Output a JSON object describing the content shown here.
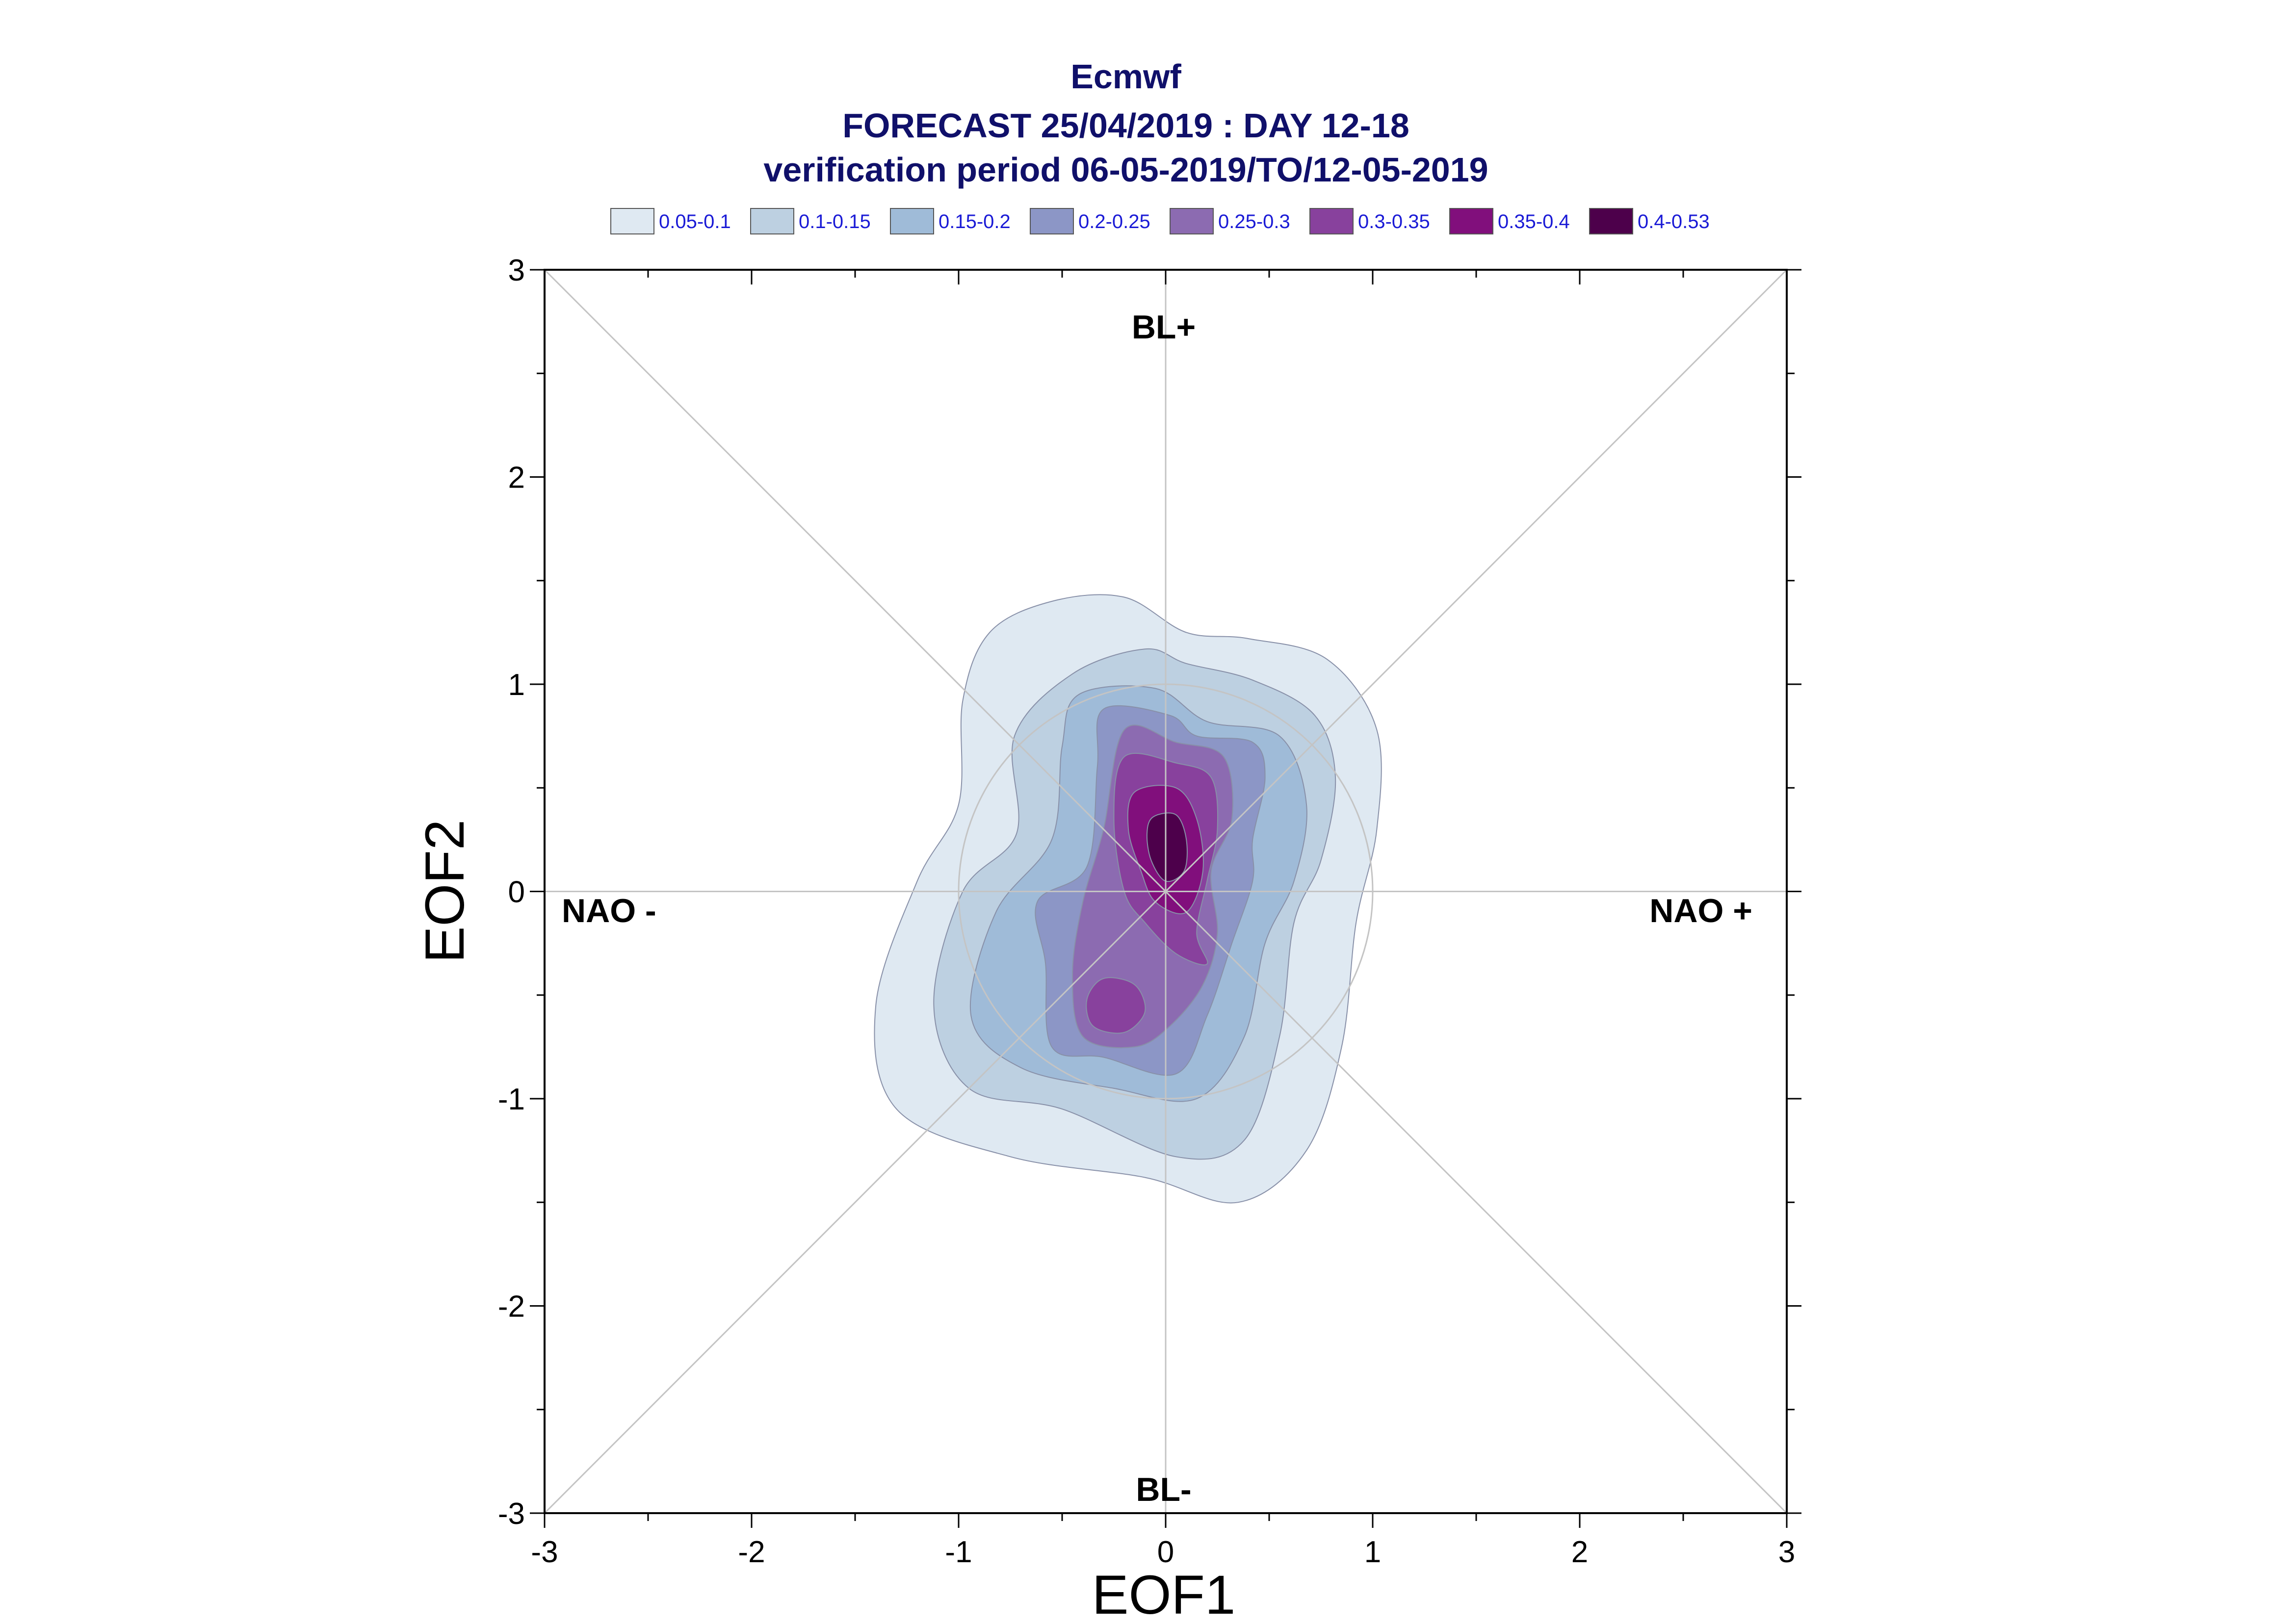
{
  "chart_data": {
    "type": "heatmap",
    "title_lines": [
      "Ecmwf",
      "FORECAST 25/04/2019 : DAY 12-18",
      "verification period 06-05-2019/TO/12-05-2019"
    ],
    "xlabel": "EOF1",
    "ylabel": "EOF2",
    "xlim": [
      -3,
      3
    ],
    "ylim": [
      -3,
      3
    ],
    "x_ticks": [
      "-3",
      "-2",
      "-1",
      "0",
      "1",
      "2",
      "3"
    ],
    "y_ticks": [
      "-3",
      "-2",
      "-1",
      "0",
      "1",
      "2",
      "3"
    ],
    "grid": false,
    "legend_position": "top",
    "legend": [
      {
        "label": "0.05-0.1",
        "color": "#dfe9f2"
      },
      {
        "label": "0.1-0.15",
        "color": "#bdd0e1"
      },
      {
        "label": "0.15-0.2",
        "color": "#9fbbd8"
      },
      {
        "label": "0.2-0.25",
        "color": "#8c96c6"
      },
      {
        "label": "0.25-0.3",
        "color": "#8c6bb1"
      },
      {
        "label": "0.3-0.35",
        "color": "#88419d"
      },
      {
        "label": "0.35-0.4",
        "color": "#810f7c"
      },
      {
        "label": "0.4-0.53",
        "color": "#4d004b"
      }
    ],
    "region_labels": {
      "top": "BL+",
      "bottom": "BL-",
      "left": "NAO -",
      "right": "NAO +"
    },
    "reference_circle_radius": 1.0,
    "contours": [
      {
        "level": "0.05-0.1",
        "color": "#dfe9f2",
        "points": [
          [
            -0.55,
            1.4
          ],
          [
            -0.2,
            1.42
          ],
          [
            0.1,
            1.25
          ],
          [
            0.4,
            1.22
          ],
          [
            0.78,
            1.12
          ],
          [
            1.02,
            0.78
          ],
          [
            1.02,
            0.3
          ],
          [
            0.92,
            -0.15
          ],
          [
            0.85,
            -0.75
          ],
          [
            0.68,
            -1.25
          ],
          [
            0.35,
            -1.5
          ],
          [
            -0.1,
            -1.38
          ],
          [
            -0.75,
            -1.28
          ],
          [
            -1.3,
            -1.05
          ],
          [
            -1.4,
            -0.55
          ],
          [
            -1.2,
            0.05
          ],
          [
            -1.0,
            0.42
          ],
          [
            -0.98,
            0.92
          ],
          [
            -0.85,
            1.25
          ]
        ]
      },
      {
        "level": "0.1-0.15",
        "color": "#bdd0e1",
        "points": [
          [
            -0.45,
            1.05
          ],
          [
            -0.1,
            1.17
          ],
          [
            0.1,
            1.1
          ],
          [
            0.42,
            1.02
          ],
          [
            0.72,
            0.85
          ],
          [
            0.82,
            0.55
          ],
          [
            0.75,
            0.15
          ],
          [
            0.62,
            -0.15
          ],
          [
            0.55,
            -0.7
          ],
          [
            0.38,
            -1.2
          ],
          [
            0.05,
            -1.28
          ],
          [
            -0.5,
            -1.05
          ],
          [
            -0.95,
            -0.95
          ],
          [
            -1.12,
            -0.55
          ],
          [
            -0.98,
            0.0
          ],
          [
            -0.72,
            0.28
          ],
          [
            -0.73,
            0.75
          ]
        ]
      },
      {
        "level": "0.15-0.2",
        "color": "#9fbbd8",
        "points": [
          [
            -0.42,
            0.95
          ],
          [
            -0.05,
            0.98
          ],
          [
            0.2,
            0.82
          ],
          [
            0.55,
            0.75
          ],
          [
            0.68,
            0.42
          ],
          [
            0.62,
            0.05
          ],
          [
            0.48,
            -0.25
          ],
          [
            0.38,
            -0.7
          ],
          [
            0.15,
            -1.0
          ],
          [
            -0.25,
            -0.95
          ],
          [
            -0.7,
            -0.85
          ],
          [
            -0.94,
            -0.6
          ],
          [
            -0.82,
            -0.1
          ],
          [
            -0.55,
            0.25
          ],
          [
            -0.5,
            0.7
          ]
        ]
      },
      {
        "level": "0.2-0.25",
        "color": "#8c96c6",
        "points": [
          [
            -0.3,
            0.88
          ],
          [
            0.02,
            0.85
          ],
          [
            0.15,
            0.75
          ],
          [
            0.42,
            0.72
          ],
          [
            0.48,
            0.55
          ],
          [
            0.42,
            0.25
          ],
          [
            0.42,
            0.05
          ],
          [
            0.32,
            -0.25
          ],
          [
            0.2,
            -0.6
          ],
          [
            0.05,
            -0.88
          ],
          [
            -0.3,
            -0.8
          ],
          [
            -0.55,
            -0.75
          ],
          [
            -0.58,
            -0.35
          ],
          [
            -0.62,
            -0.05
          ],
          [
            -0.38,
            0.12
          ],
          [
            -0.33,
            0.6
          ]
        ]
      },
      {
        "level": "0.25-0.3",
        "color": "#8c6bb1",
        "points": [
          [
            -0.2,
            0.78
          ],
          [
            0.05,
            0.72
          ],
          [
            0.28,
            0.65
          ],
          [
            0.32,
            0.35
          ],
          [
            0.22,
            0.1
          ],
          [
            0.25,
            -0.2
          ],
          [
            0.18,
            -0.45
          ],
          [
            0.02,
            -0.65
          ],
          [
            -0.15,
            -0.75
          ],
          [
            -0.4,
            -0.7
          ],
          [
            -0.45,
            -0.4
          ],
          [
            -0.4,
            -0.05
          ],
          [
            -0.3,
            0.3
          ]
        ]
      },
      {
        "level": "0.3-0.35",
        "color": "#88419d",
        "points": [
          [
            -0.2,
            0.65
          ],
          [
            0.05,
            0.62
          ],
          [
            0.22,
            0.55
          ],
          [
            0.25,
            0.3
          ],
          [
            0.2,
            0.05
          ],
          [
            0.15,
            -0.2
          ],
          [
            0.2,
            -0.35
          ],
          [
            0.05,
            -0.3
          ],
          [
            -0.1,
            -0.15
          ],
          [
            -0.2,
            0.0
          ],
          [
            -0.25,
            0.35
          ]
        ]
      },
      {
        "level": "0.3-0.35",
        "color": "#88419d",
        "points": [
          [
            -0.3,
            -0.42
          ],
          [
            -0.15,
            -0.45
          ],
          [
            -0.1,
            -0.58
          ],
          [
            -0.2,
            -0.68
          ],
          [
            -0.35,
            -0.65
          ],
          [
            -0.38,
            -0.52
          ]
        ]
      },
      {
        "level": "0.35-0.4",
        "color": "#810f7c",
        "points": [
          [
            -0.15,
            0.48
          ],
          [
            0.05,
            0.5
          ],
          [
            0.15,
            0.35
          ],
          [
            0.18,
            0.1
          ],
          [
            0.1,
            -0.1
          ],
          [
            -0.05,
            -0.05
          ],
          [
            -0.12,
            0.1
          ],
          [
            -0.18,
            0.3
          ]
        ]
      },
      {
        "level": "0.4-0.53",
        "color": "#4d004b",
        "points": [
          [
            -0.06,
            0.36
          ],
          [
            0.05,
            0.37
          ],
          [
            0.1,
            0.25
          ],
          [
            0.09,
            0.1
          ],
          [
            0.0,
            0.05
          ],
          [
            -0.07,
            0.15
          ],
          [
            -0.09,
            0.28
          ]
        ]
      }
    ]
  }
}
